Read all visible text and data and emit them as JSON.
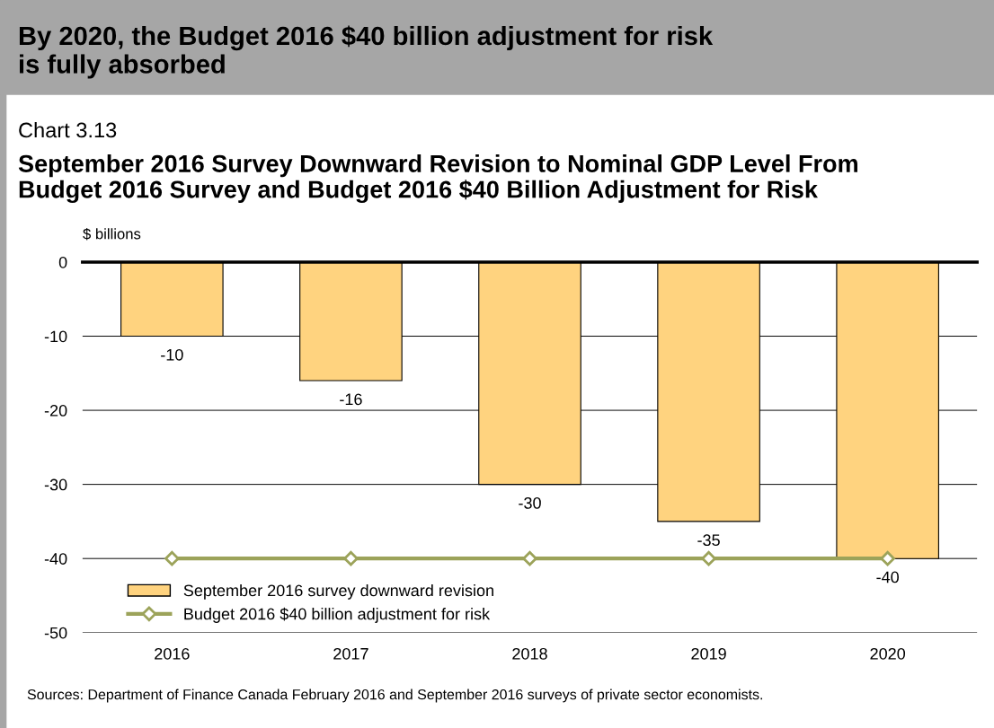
{
  "chart_data": {
    "type": "bar",
    "title": "September 2016 Survey Downward Revision to Nominal GDP Level From\nBudget 2016 Survey and Budget 2016 $40 Billion Adjustment for Risk",
    "ylabel": "$ billions",
    "annotations": [
      "By 2020, the Budget 2016 $40 billion adjustment for risk\nis fully absorbed",
      "Chart 3.13",
      "Sources: Department of Finance Canada February 2016 and September 2016 surveys of private sector economists."
    ],
    "categories": [
      "2016",
      "2017",
      "2018",
      "2019",
      "2020"
    ],
    "series": [
      {
        "name": "September 2016 survey downward revision",
        "color": "#ffd37f",
        "values": [
          -10,
          -16,
          -30,
          -35,
          -40
        ],
        "value_labels": [
          "-10",
          "-16",
          "-30",
          "-35",
          "-40"
        ]
      },
      {
        "name": "Budget 2016 $40 billion adjustment for risk",
        "type": "line",
        "color": "#9ca35a",
        "marker": "diamond",
        "values": [
          -40,
          -40,
          -40,
          -40,
          -40
        ]
      }
    ],
    "ylim": [
      -50,
      0
    ],
    "yticks": [
      -50,
      -40,
      -30,
      -20,
      -10,
      0
    ],
    "grid": "y",
    "legend": "bottom left"
  }
}
